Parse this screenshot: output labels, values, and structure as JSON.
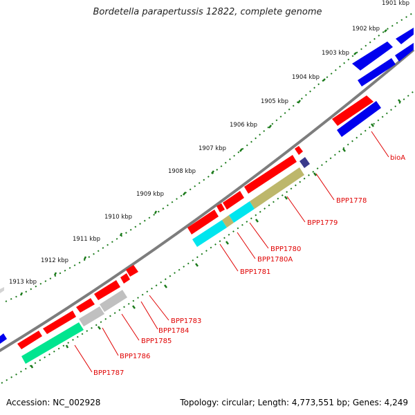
{
  "title": "Bordetella parapertussis 12822, complete genome",
  "footer": {
    "accession": "Accession: NC_002928",
    "summary": "Topology: circular; Length: 4,773,551 bp; Genes: 4,249"
  },
  "ruler_labels": [
    "1901 kbp",
    "1902 kbp",
    "1903 kbp",
    "1904 kbp",
    "1905 kbp",
    "1906 kbp",
    "1907 kbp",
    "1908 kbp",
    "1909 kbp",
    "1910 kbp",
    "1911 kbp",
    "1912 kbp",
    "1913 kbp"
  ],
  "colors": {
    "backbone": "#7d7d7d",
    "ruler_dots": "#1a7a1a",
    "label_text": "#e00000",
    "forward_gene": "#ff0000",
    "blue_gene": "#0000ee",
    "cyan_gene": "#00e5ee",
    "olive_gene": "#bdb76b",
    "grey_gene": "#c0c0c0",
    "green_gene": "#00e58f",
    "navy_gene": "#3a3a8c"
  },
  "gene_labels": [
    "bioA",
    "BPP1778",
    "BPP1779",
    "BPP1780",
    "BPP1780A",
    "BPP1781",
    "BPP1783",
    "BPP1784",
    "BPP1785",
    "BPP1786",
    "BPP1787"
  ]
}
